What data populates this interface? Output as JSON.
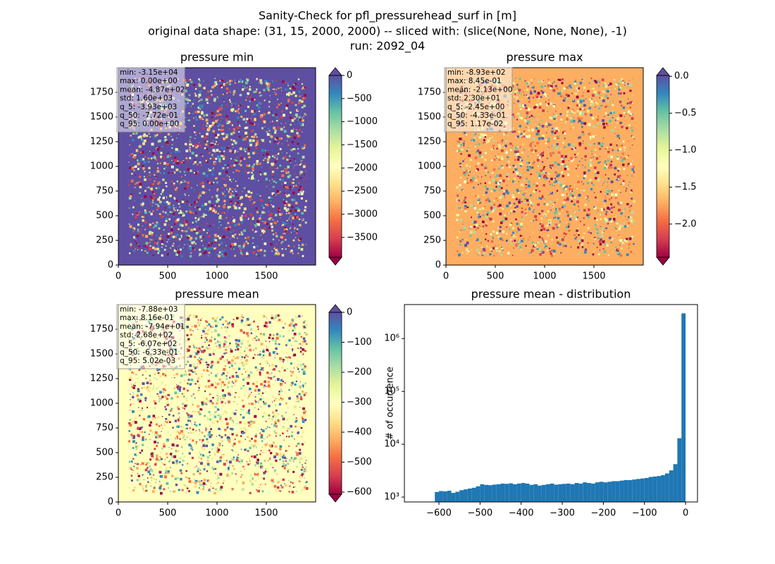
{
  "figure_title": [
    "Sanity-Check for pfl_pressurehead_surf in [m]",
    "original data shape: (31, 15, 2000, 2000) -- sliced with: (slice(None, None, None), -1)",
    "run: 2092_04"
  ],
  "chart_data": [
    {
      "type": "image",
      "title": "pressure min",
      "background_color": "#5e4fa2",
      "cmap_colors": [
        "#9e0142",
        "#d53e4f",
        "#f46d43",
        "#fdae61",
        "#fee08b",
        "#ffffbf",
        "#e6f598",
        "#abdda4",
        "#66c2a5",
        "#3288bd",
        "#5e4fa2"
      ],
      "xlim": [
        0,
        2000
      ],
      "ylim": [
        0,
        2000
      ],
      "xticks": [
        0,
        500,
        1000,
        1500
      ],
      "yticks": [
        0,
        250,
        500,
        750,
        1000,
        1250,
        1500,
        1750
      ],
      "stats": [
        "min: -3.15e+04",
        "max: 0.00e+00",
        "mean: -4.87e+02",
        "std: 1.60e+03",
        "q_5: -3.93e+03",
        "q_50: -7.72e-01",
        "q_95: 0.00e+00"
      ],
      "colorbar": {
        "lim": [
          -3930,
          0
        ],
        "extend": "both",
        "ticks": [
          0,
          {
            "value": -500,
            "label": "−500"
          },
          {
            "value": -1000,
            "label": "−1000"
          },
          {
            "value": -1500,
            "label": "−1500"
          },
          {
            "value": -2000,
            "label": "−2000"
          },
          {
            "value": -2500,
            "label": "−2500"
          },
          {
            "value": -3000,
            "label": "−3000"
          },
          {
            "value": -3500,
            "label": "−3500"
          }
        ]
      }
    },
    {
      "type": "image",
      "title": "pressure max",
      "background_color": "#fdae61",
      "cmap_colors": [
        "#9e0142",
        "#d53e4f",
        "#f46d43",
        "#fdae61",
        "#fee08b",
        "#ffffbf",
        "#e6f598",
        "#abdda4",
        "#66c2a5",
        "#3288bd",
        "#5e4fa2"
      ],
      "xlim": [
        0,
        2000
      ],
      "ylim": [
        0,
        2000
      ],
      "xticks": [
        0,
        500,
        1000,
        1500
      ],
      "yticks": [
        0,
        250,
        500,
        750,
        1000,
        1250,
        1500,
        1750
      ],
      "stats": [
        "min: -8.93e+02",
        "max: 8.45e-01",
        "mean: -2.13e+00",
        "std: 2.30e+01",
        "q_5: -2.45e+00",
        "q_50: -4.33e-01",
        "q_95: 1.17e-02"
      ],
      "colorbar": {
        "lim": [
          -2.45,
          0.0117
        ],
        "extend": "both",
        "ticks": [
          {
            "value": 0,
            "label": "0.0"
          },
          {
            "value": -0.5,
            "label": "−0.5"
          },
          {
            "value": -1,
            "label": "−1.0"
          },
          {
            "value": -1.5,
            "label": "−1.5"
          },
          {
            "value": -2,
            "label": "−2.0"
          }
        ]
      }
    },
    {
      "type": "image",
      "title": "pressure mean",
      "background_color": "#ffffbf",
      "cmap_colors": [
        "#9e0142",
        "#d53e4f",
        "#f46d43",
        "#fdae61",
        "#fee08b",
        "#ffffbf",
        "#e6f598",
        "#abdda4",
        "#66c2a5",
        "#3288bd",
        "#5e4fa2"
      ],
      "xlim": [
        0,
        2000
      ],
      "ylim": [
        0,
        2000
      ],
      "xticks": [
        0,
        500,
        1000,
        1500
      ],
      "yticks": [
        0,
        250,
        500,
        750,
        1000,
        1250,
        1500,
        1750
      ],
      "stats": [
        "min: -7.88e+03",
        "max: 8.16e-01",
        "mean: -7.94e+01",
        "std: 2.68e+02",
        "q_5: -6.07e+02",
        "q_50: -6.33e-01",
        "q_95: 5.02e-03"
      ],
      "colorbar": {
        "lim": [
          -607,
          0.00502
        ],
        "extend": "both",
        "ticks": [
          0,
          {
            "value": -100,
            "label": "−100"
          },
          {
            "value": -200,
            "label": "−200"
          },
          {
            "value": -300,
            "label": "−300"
          },
          {
            "value": -400,
            "label": "−400"
          },
          {
            "value": -500,
            "label": "−500"
          },
          {
            "value": -600,
            "label": "−600"
          }
        ]
      }
    },
    {
      "type": "histogram",
      "title": "pressure mean - distribution",
      "ylabel": "# of occurrence",
      "color": "#1f77b4",
      "yscale": "log",
      "bins": [
        -610,
        -600,
        -590,
        -580,
        -570,
        -560,
        -550,
        -540,
        -530,
        -520,
        -510,
        -500,
        -490,
        -480,
        -470,
        -460,
        -450,
        -440,
        -430,
        -420,
        -410,
        -400,
        -390,
        -380,
        -370,
        -360,
        -350,
        -340,
        -330,
        -320,
        -310,
        -300,
        -290,
        -280,
        -270,
        -260,
        -250,
        -240,
        -230,
        -220,
        -210,
        -200,
        -190,
        -180,
        -170,
        -160,
        -150,
        -140,
        -130,
        -120,
        -110,
        -100,
        -90,
        -80,
        -70,
        -60,
        -50,
        -40,
        -30,
        -20,
        -10,
        0
      ],
      "counts": [
        1250,
        1300,
        1280,
        1320,
        1200,
        1260,
        1350,
        1400,
        1450,
        1500,
        1600,
        1750,
        1700,
        1680,
        1720,
        1750,
        1800,
        1780,
        1820,
        1750,
        1800,
        1850,
        1800,
        1700,
        1750,
        1650,
        1700,
        1750,
        1800,
        1720,
        1750,
        1780,
        1800,
        1750,
        1850,
        1800,
        1900,
        1850,
        1800,
        1900,
        1950,
        1900,
        1950,
        2000,
        2000,
        2050,
        2100,
        2100,
        2150,
        2200,
        2250,
        2300,
        2400,
        2450,
        2500,
        2600,
        2800,
        3200,
        4200,
        13000,
        3000000
      ],
      "xlim": [
        -684,
        29
      ],
      "ylim": [
        808,
        4400000
      ],
      "xticks": [
        {
          "value": -600,
          "label": "−600"
        },
        {
          "value": -500,
          "label": "−500"
        },
        {
          "value": -400,
          "label": "−400"
        },
        {
          "value": -300,
          "label": "−300"
        },
        {
          "value": -200,
          "label": "−200"
        },
        {
          "value": -100,
          "label": "−100"
        },
        0
      ],
      "yticks": [
        {
          "value": 1000,
          "label": "10³"
        },
        {
          "value": 10000,
          "label": "10⁴"
        },
        {
          "value": 100000,
          "label": "10⁵"
        },
        {
          "value": 1000000,
          "label": "10⁶"
        }
      ]
    }
  ]
}
